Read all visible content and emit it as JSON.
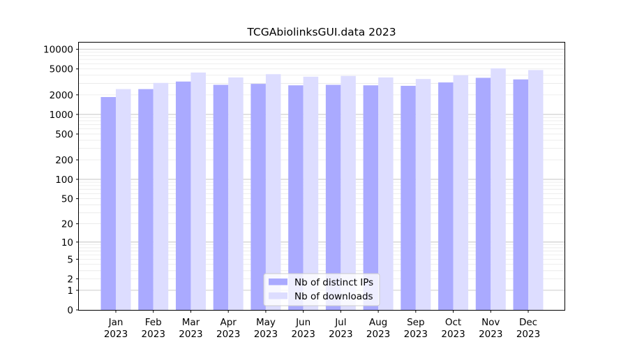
{
  "chart_data": {
    "type": "bar",
    "title": "TCGAbiolinksGUI.data 2023",
    "xlabel": "",
    "ylabel": "",
    "yscale": "symlog",
    "ylim": [
      0,
      13000
    ],
    "grid": true,
    "legend_position": "bottom-center",
    "categories": [
      [
        "Jan",
        "2023"
      ],
      [
        "Feb",
        "2023"
      ],
      [
        "Mar",
        "2023"
      ],
      [
        "Apr",
        "2023"
      ],
      [
        "May",
        "2023"
      ],
      [
        "Jun",
        "2023"
      ],
      [
        "Jul",
        "2023"
      ],
      [
        "Aug",
        "2023"
      ],
      [
        "Sep",
        "2023"
      ],
      [
        "Oct",
        "2023"
      ],
      [
        "Nov",
        "2023"
      ],
      [
        "Dec",
        "2023"
      ]
    ],
    "y_ticks": [
      {
        "value": 0,
        "label": "0"
      },
      {
        "value": 1,
        "label": "1"
      },
      {
        "value": 2,
        "label": "2"
      },
      {
        "value": 5,
        "label": "5"
      },
      {
        "value": 10,
        "label": "10"
      },
      {
        "value": 20,
        "label": "20"
      },
      {
        "value": 50,
        "label": "50"
      },
      {
        "value": 100,
        "label": "100"
      },
      {
        "value": 200,
        "label": "200"
      },
      {
        "value": 500,
        "label": "500"
      },
      {
        "value": 1000,
        "label": "1000"
      },
      {
        "value": 2000,
        "label": "2000"
      },
      {
        "value": 5000,
        "label": "5000"
      },
      {
        "value": 10000,
        "label": "10000"
      }
    ],
    "series": [
      {
        "name": "Nb of distinct IPs",
        "color": "#aaaaff",
        "values": [
          1850,
          2450,
          3200,
          2850,
          2950,
          2800,
          2850,
          2800,
          2750,
          3100,
          3650,
          3450
        ]
      },
      {
        "name": "Nb of downloads",
        "color": "#ddddff",
        "values": [
          2450,
          3050,
          4400,
          3700,
          4150,
          3800,
          3900,
          3700,
          3500,
          4000,
          5100,
          4800
        ]
      }
    ]
  }
}
